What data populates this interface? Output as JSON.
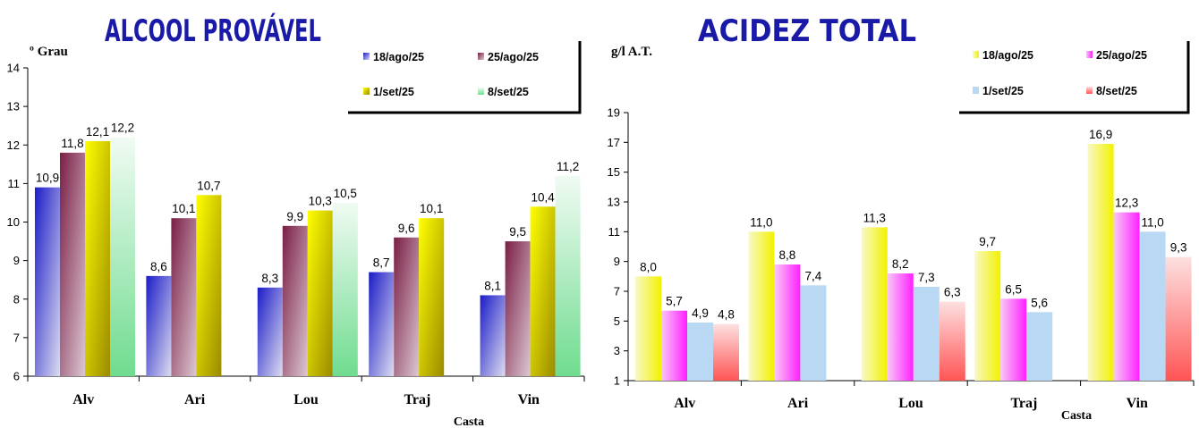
{
  "chart_data": [
    {
      "type": "bar",
      "title": "ALCOOL PROVÁVEL",
      "ylabel": "º Grau",
      "xlabel": "Casta",
      "ylim": [
        6,
        14
      ],
      "yticks": [
        6,
        7,
        8,
        9,
        10,
        11,
        12,
        13,
        14
      ],
      "categories": [
        "Alv",
        "Ari",
        "Lou",
        "Traj",
        "Vin"
      ],
      "legend_position": "top-right",
      "series": [
        {
          "name": "18/ago/25",
          "color": "#2a2ab8",
          "labels": [
            "10,9",
            "8,6",
            "8,3",
            "8,7",
            "8,1"
          ],
          "values": [
            10.9,
            8.6,
            8.3,
            8.7,
            8.1
          ]
        },
        {
          "name": "25/ago/25",
          "color": "#8a2f4e",
          "labels": [
            "11,8",
            "10,1",
            "9,9",
            "9,6",
            "9,5"
          ],
          "values": [
            11.8,
            10.1,
            9.9,
            9.6,
            9.5
          ]
        },
        {
          "name": "1/set/25",
          "color": "#ffff00",
          "labels": [
            "12,1",
            "10,7",
            "10,3",
            "10,1",
            "10,4"
          ],
          "values": [
            12.1,
            10.7,
            10.3,
            10.1,
            10.4
          ]
        },
        {
          "name": "8/set/25",
          "color": "#7fe0a0",
          "labels": [
            "12,2",
            "",
            "10,5",
            "",
            "11,2"
          ],
          "values": [
            12.2,
            null,
            10.5,
            null,
            11.2
          ]
        }
      ]
    },
    {
      "type": "bar",
      "title": "ACIDEZ TOTAL",
      "ylabel": "g/l A.T.",
      "xlabel": "Casta",
      "ylim": [
        1,
        19
      ],
      "yticks": [
        1,
        3,
        5,
        7,
        9,
        11,
        13,
        15,
        17,
        19
      ],
      "categories": [
        "Alv",
        "Ari",
        "Lou",
        "Traj",
        "Vin"
      ],
      "legend_position": "top-right",
      "series": [
        {
          "name": "18/ago/25",
          "color": "#ffff00",
          "labels": [
            "8,0",
            "11,0",
            "11,3",
            "9,7",
            "16,9"
          ],
          "values": [
            8.0,
            11.0,
            11.3,
            9.7,
            16.9
          ]
        },
        {
          "name": "25/ago/25",
          "color": "#ff33ff",
          "labels": [
            "5,7",
            "8,8",
            "8,2",
            "6,5",
            "12,3"
          ],
          "values": [
            5.7,
            8.8,
            8.2,
            6.5,
            12.3
          ]
        },
        {
          "name": "1/set/25",
          "color": "#a8cdef",
          "labels": [
            "4,9",
            "7,4",
            "7,3",
            "5,6",
            "11,0"
          ],
          "values": [
            4.9,
            7.4,
            7.3,
            5.6,
            11.0
          ]
        },
        {
          "name": "8/set/25",
          "color": "#ff6666",
          "labels": [
            "4,8",
            "",
            "6,3",
            "",
            "9,3"
          ],
          "values": [
            4.8,
            null,
            6.3,
            null,
            9.3
          ]
        }
      ]
    }
  ]
}
